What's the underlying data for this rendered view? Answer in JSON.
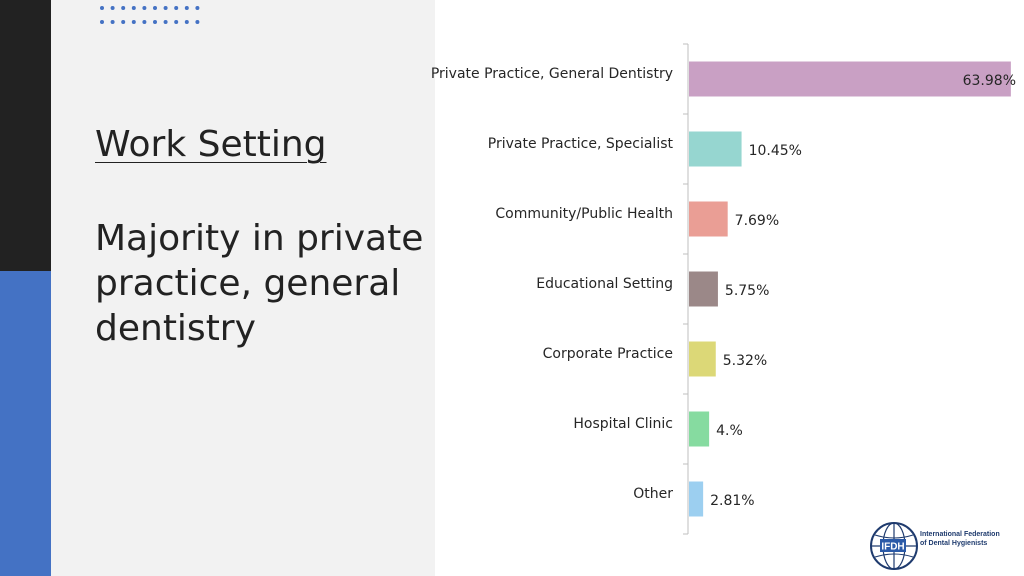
{
  "slide": {
    "title": "Work Setting",
    "subtitle": "Majority in private practice, general dentistry"
  },
  "colors": {
    "dark_strip": "#222222",
    "blue_strip": "#4472c4",
    "panel": "#f2f2f2",
    "dots": "#4472c4"
  },
  "chart_data": {
    "type": "bar",
    "orientation": "horizontal",
    "categories": [
      "Private Practice, General Dentistry",
      "Private Practice, Specialist",
      "Community/Public Health",
      "Educational Setting",
      "Corporate Practice",
      "Hospital Clinic",
      "Other"
    ],
    "values": [
      63.98,
      10.45,
      7.69,
      5.75,
      5.32,
      4.0,
      2.81
    ],
    "data_labels": [
      "63.98%",
      "10.45%",
      "7.69%",
      "5.75%",
      "5.32%",
      "4.%",
      "2.81%"
    ],
    "colors": [
      "#c9a0c4",
      "#96d6d0",
      "#ea9e95",
      "#9b8888",
      "#dcd877",
      "#86dba0",
      "#9ccff0"
    ],
    "xlim": [
      0,
      65
    ],
    "title": "",
    "xlabel": "",
    "ylabel": "",
    "grid": false,
    "legend": "none"
  },
  "logo": {
    "icon_name": "globe-icon",
    "badge": "IFDH",
    "line1": "International Federation",
    "line2": "of Dental Hygienists"
  }
}
